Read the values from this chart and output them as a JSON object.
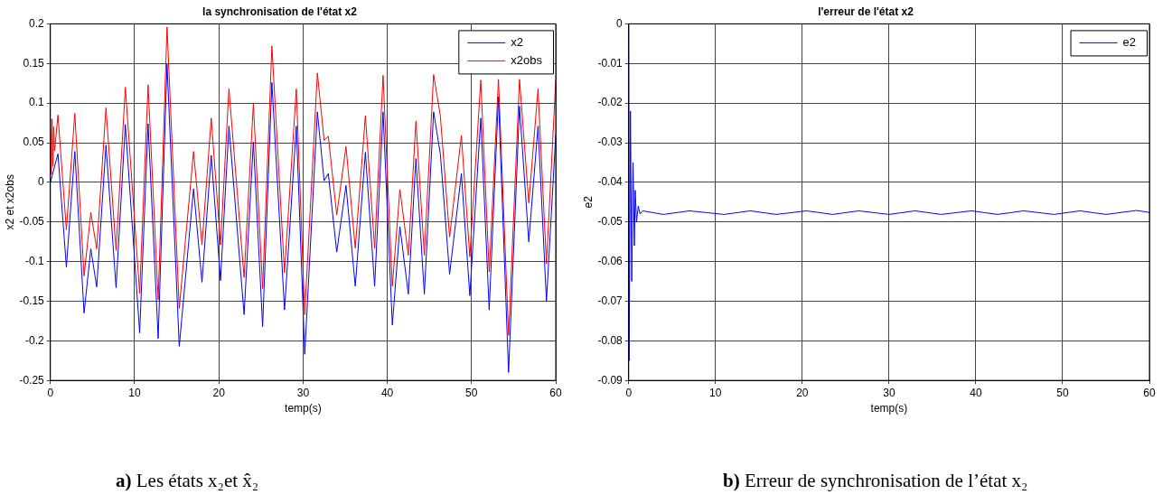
{
  "chart_data": [
    {
      "type": "line",
      "title": "la synchronisation de l'état x2",
      "xlabel": "temp(s)",
      "ylabel": "x2 et x2obs",
      "xlim": [
        0,
        60
      ],
      "xticks": [
        0,
        10,
        20,
        30,
        40,
        50,
        60
      ],
      "ylim": [
        -0.25,
        0.2
      ],
      "yticks": [
        -0.25,
        -0.2,
        -0.15,
        -0.1,
        -0.05,
        0,
        0.05,
        0.1,
        0.15,
        0.2
      ],
      "grid": true,
      "legend": "top right",
      "annotations": [
        "a) Les états x₂et x̂₂"
      ],
      "series": [
        {
          "name": "x2",
          "color": "#0000ff",
          "x": [
            0,
            0.9,
            1.9,
            2.9,
            4,
            4.8,
            5.5,
            6.6,
            7.8,
            8.9,
            10.6,
            11.6,
            12.8,
            13.85,
            15.3,
            17,
            18,
            19.1,
            20.2,
            21.2,
            23,
            24.1,
            25.2,
            26.3,
            27.8,
            29.2,
            30.2,
            31.7,
            32.5,
            33,
            34,
            35.1,
            36.2,
            37.4,
            38.5,
            39.5,
            40.6,
            41.5,
            42.5,
            43.4,
            44.4,
            45.5,
            46.3,
            47.4,
            48.8,
            49.8,
            51.1,
            52.1,
            53.2,
            54.4,
            55.7,
            56.8,
            57.9,
            58.9,
            60
          ],
          "values": [
            0,
            0.036,
            -0.107,
            0.039,
            -0.165,
            -0.084,
            -0.132,
            0.047,
            -0.133,
            0.073,
            -0.19,
            0.074,
            -0.197,
            0.149,
            -0.207,
            -0.008,
            -0.126,
            0.034,
            -0.124,
            0.071,
            -0.167,
            0.051,
            -0.182,
            0.126,
            -0.161,
            0.071,
            -0.217,
            0.089,
            0.002,
            0.011,
            -0.088,
            -0.004,
            -0.131,
            0.038,
            -0.131,
            0.089,
            -0.18,
            -0.056,
            -0.141,
            0.03,
            -0.141,
            0.089,
            0.036,
            -0.116,
            0.011,
            -0.143,
            0.081,
            -0.161,
            0.108,
            -0.24,
            0.096,
            -0.075,
            0.071,
            -0.15,
            0.06
          ]
        },
        {
          "name": "x2obs",
          "color": "#ff0000",
          "x": [
            0,
            0.1,
            0.2,
            0.3,
            0.4,
            0.5,
            0.9,
            1.9,
            2.9,
            4,
            4.8,
            5.5,
            6.6,
            7.8,
            8.9,
            10.6,
            11.6,
            12.8,
            13.85,
            15.3,
            17,
            18,
            19.1,
            20.2,
            21.2,
            23,
            24.1,
            25.2,
            26.3,
            27.8,
            29.2,
            30.2,
            31.7,
            32.5,
            33,
            34,
            35.1,
            36.2,
            37.4,
            38.5,
            39.5,
            40.6,
            41.5,
            42.5,
            43.4,
            44.4,
            45.5,
            46.3,
            47.4,
            48.8,
            49.8,
            51.1,
            52.1,
            53.2,
            54.4,
            55.7,
            56.8,
            57.9,
            58.9,
            60
          ],
          "values": [
            0.08,
            0.01,
            0.08,
            0.02,
            0.07,
            0.04,
            0.085,
            -0.06,
            0.087,
            -0.118,
            -0.038,
            -0.084,
            0.094,
            -0.086,
            0.12,
            -0.14,
            0.123,
            -0.148,
            0.196,
            -0.159,
            0.039,
            -0.079,
            0.081,
            -0.079,
            0.118,
            -0.12,
            0.099,
            -0.134,
            0.172,
            -0.114,
            0.118,
            -0.167,
            0.138,
            0.053,
            0.058,
            -0.041,
            0.045,
            -0.083,
            0.084,
            -0.083,
            0.135,
            -0.131,
            -0.009,
            -0.092,
            0.077,
            -0.092,
            0.136,
            0.084,
            -0.069,
            0.059,
            -0.094,
            0.129,
            -0.113,
            0.13,
            -0.193,
            0.13,
            -0.026,
            0.118,
            -0.103,
            0.129
          ]
        }
      ]
    },
    {
      "type": "line",
      "title": "l'erreur de l'état x2",
      "xlabel": "temp(s)",
      "ylabel": "e2",
      "xlim": [
        0,
        60
      ],
      "xticks": [
        0,
        10,
        20,
        30,
        40,
        50,
        60
      ],
      "ylim": [
        -0.09,
        0
      ],
      "yticks": [
        -0.09,
        -0.08,
        -0.07,
        -0.06,
        -0.05,
        -0.04,
        -0.03,
        -0.02,
        -0.01,
        0
      ],
      "grid": true,
      "legend": "top right",
      "annotations": [
        "b) Erreur de synchronisation de l’état x₂"
      ],
      "series": [
        {
          "name": "e2",
          "color": "#0000ff",
          "x": [
            0,
            0.05,
            0.2,
            0.35,
            0.5,
            0.65,
            0.75,
            0.9,
            1.1,
            1.3,
            1.6,
            4,
            7,
            11,
            14,
            17,
            20.5,
            23.5,
            26.5,
            30,
            33,
            36,
            39.5,
            42.5,
            45.5,
            49,
            52,
            55,
            58.5,
            60
          ],
          "values": [
            0,
            -0.085,
            -0.022,
            -0.065,
            -0.035,
            -0.056,
            -0.042,
            -0.05,
            -0.046,
            -0.048,
            -0.0472,
            -0.0481,
            -0.0472,
            -0.0481,
            -0.0472,
            -0.0481,
            -0.0472,
            -0.0481,
            -0.0472,
            -0.0481,
            -0.0472,
            -0.0481,
            -0.0472,
            -0.0481,
            -0.0472,
            -0.0481,
            -0.0472,
            -0.0481,
            -0.0471,
            -0.0476
          ]
        }
      ]
    }
  ]
}
